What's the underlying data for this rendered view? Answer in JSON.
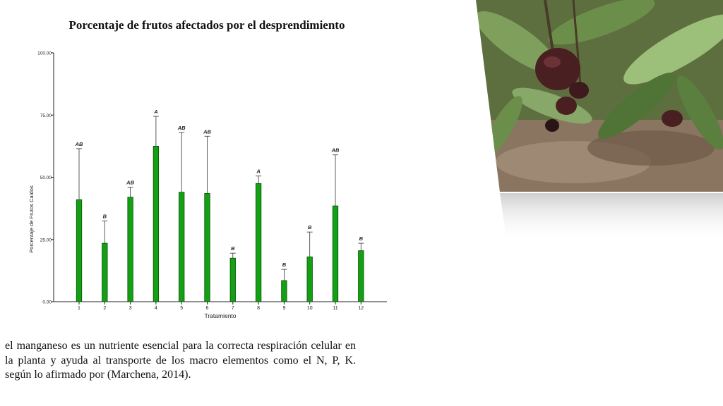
{
  "slide": {
    "title": "Porcentaje de frutos afectados por el desprendimiento",
    "body": "el manganeso es un nutriente esencial para la correcta respiración celular en la planta y ayuda al transporte de los macro elementos como el N, P, K. según lo afirmado por (Marchena, 2014)."
  },
  "photo": {
    "description": "avocado-tree-photo"
  },
  "chart_data": {
    "type": "bar",
    "title": "Porcentaje de frutos afectados por el desprendimiento",
    "xlabel": "Tratamiento",
    "ylabel": "Porcentaje de Frutos Caídos",
    "ylim": [
      0,
      100
    ],
    "yticks": [
      "0.00",
      "25.00",
      "50.00",
      "75.00",
      "100.00"
    ],
    "categories": [
      "1",
      "2",
      "3",
      "4",
      "5",
      "6",
      "7",
      "8",
      "9",
      "10",
      "11",
      "12"
    ],
    "values": [
      41.0,
      23.5,
      42.0,
      62.5,
      44.0,
      43.5,
      17.5,
      47.5,
      8.5,
      18.0,
      38.5,
      20.5
    ],
    "error_upper": [
      61.5,
      32.5,
      46.0,
      74.5,
      68.0,
      66.5,
      19.5,
      50.5,
      13.0,
      28.0,
      59.0,
      23.5
    ],
    "letters": [
      "AB",
      "B",
      "AB",
      "A",
      "AB",
      "AB",
      "B",
      "A",
      "B",
      "B",
      "AB",
      "B"
    ],
    "colors": {
      "bar": "#13a013",
      "bar_stroke": "#0b4d0b"
    },
    "grid": false
  }
}
